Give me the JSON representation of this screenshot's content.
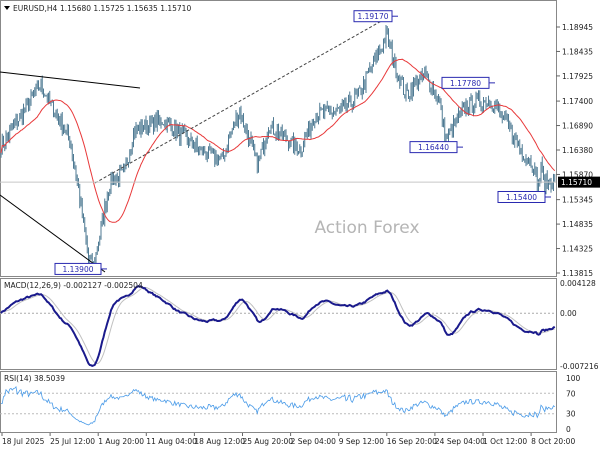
{
  "header": {
    "symbol": "EURUSD,H4",
    "ohlc": "1.15680 1.15725 1.15635 1.15710"
  },
  "watermark": "Action Forex",
  "colors": {
    "bars": "#4f7a93",
    "ma": "#e8393a",
    "macd": "#1a1a8c",
    "signal": "#c0c0c0",
    "rsi": "#4a9be8",
    "label_border": "#2a2ab0"
  },
  "chart_data": [
    {
      "type": "line",
      "name": "price",
      "current_price": "1.15710",
      "ylim": [
        1.13815,
        1.18945
      ],
      "y_ticks": [
        "1.18945",
        "1.18435",
        "1.17925",
        "1.17400",
        "1.16890",
        "1.16380",
        "1.15870",
        "1.15345",
        "1.14835",
        "1.14325",
        "1.13815"
      ],
      "x_ticks": [
        {
          "label": "18 Jul 2025",
          "t": "2025-07-18T00:00"
        },
        {
          "label": "25 Jul 12:00",
          "t": "2025-07-25T12:00"
        },
        {
          "label": "1 Aug 20:00",
          "t": "2025-08-01T20:00"
        },
        {
          "label": "11 Aug 04:00",
          "t": "2025-08-11T04:00"
        },
        {
          "label": "18 Aug 12:00",
          "t": "2025-08-18T12:00"
        },
        {
          "label": "25 Aug 20:00",
          "t": "2025-08-25T20:00"
        },
        {
          "label": "2 Sep 04:00",
          "t": "2025-09-02T04:00"
        },
        {
          "label": "9 Sep 12:00",
          "t": "2025-09-09T12:00"
        },
        {
          "label": "16 Sep 20:00",
          "t": "2025-09-16T20:00"
        },
        {
          "label": "24 Sep 04:00",
          "t": "2025-09-24T04:00"
        },
        {
          "label": "1 Oct 12:00",
          "t": "2025-10-01T12:00"
        },
        {
          "label": "8 Oct 20:00",
          "t": "2025-10-08T20:00"
        }
      ],
      "close_waypoints": [
        [
          "2025-07-18T00:00",
          1.1648
        ],
        [
          "2025-07-24T00:00",
          1.1774
        ],
        [
          "2025-07-28T12:00",
          1.1659
        ],
        [
          "2025-07-29T20:00",
          1.1555
        ],
        [
          "2025-07-31T08:00",
          1.1409
        ],
        [
          "2025-08-01T04:00",
          1.1398
        ],
        [
          "2025-08-04T04:00",
          1.1575
        ],
        [
          "2025-08-06T20:00",
          1.1586
        ],
        [
          "2025-08-08T20:00",
          1.168
        ],
        [
          "2025-08-13T20:00",
          1.17
        ],
        [
          "2025-08-19T08:00",
          1.1638
        ],
        [
          "2025-08-22T16:00",
          1.1617
        ],
        [
          "2025-08-25T08:00",
          1.1721
        ],
        [
          "2025-08-28T04:00",
          1.1607
        ],
        [
          "2025-08-29T20:00",
          1.169
        ],
        [
          "2025-09-03T16:00",
          1.1638
        ],
        [
          "2025-09-05T20:00",
          1.1711
        ],
        [
          "2025-09-10T08:00",
          1.1722
        ],
        [
          "2025-09-12T12:00",
          1.1753
        ],
        [
          "2025-09-16T20:00",
          1.1878
        ],
        [
          "2025-09-17T20:00",
          1.1826
        ],
        [
          "2025-09-19T16:00",
          1.1753
        ],
        [
          "2025-09-22T16:00",
          1.1794
        ],
        [
          "2025-09-24T20:00",
          1.1742
        ],
        [
          "2025-09-25T20:00",
          1.1659
        ],
        [
          "2025-09-29T00:00",
          1.1732
        ],
        [
          "2025-10-02T12:00",
          1.1742
        ],
        [
          "2025-10-03T20:00",
          1.1721
        ],
        [
          "2025-10-07T08:00",
          1.1638
        ],
        [
          "2025-10-09T04:00",
          1.1607
        ],
        [
          "2025-10-10T00:00",
          1.1555
        ],
        [
          "2025-10-10T08:00",
          1.1617
        ],
        [
          "2025-10-10T16:00",
          1.1571
        ]
      ],
      "annotations": [
        {
          "label": "1.19170",
          "price": 1.1917
        },
        {
          "label": "1.17780",
          "price": 1.1778
        },
        {
          "label": "1.16440",
          "price": 1.1644
        },
        {
          "label": "1.15400",
          "price": 1.154
        },
        {
          "label": "1.13900",
          "price": 1.139
        }
      ]
    },
    {
      "type": "line",
      "name": "MACD",
      "label": "MACD(12,26,9) -0.002127 -0.002504",
      "ylim": [
        -0.007216,
        0.004128
      ],
      "y_ticks": [
        "0.004128",
        "0.00",
        "-0.007216"
      ]
    },
    {
      "type": "line",
      "name": "RSI",
      "label": "RSI(14) 38.5039",
      "ylim": [
        0,
        100
      ],
      "y_ticks": [
        "100",
        "70",
        "30",
        "0"
      ]
    }
  ]
}
